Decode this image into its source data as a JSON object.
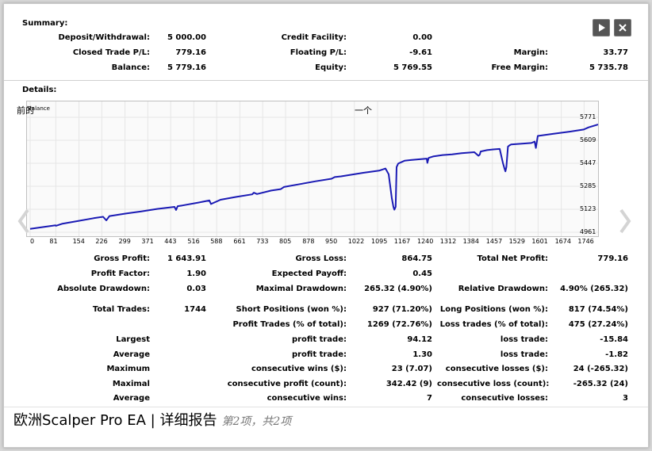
{
  "summary": {
    "title": "Summary:",
    "deposit_label": "Deposit/Withdrawal:",
    "deposit_value": "5 000.00",
    "credit_label": "Credit Facility:",
    "credit_value": "0.00",
    "closed_pl_label": "Closed Trade P/L:",
    "closed_pl_value": "779.16",
    "floating_pl_label": "Floating P/L:",
    "floating_pl_value": "-9.61",
    "margin_label": "Margin:",
    "margin_value": "33.77",
    "balance_label": "Balance:",
    "balance_value": "5 779.16",
    "equity_label": "Equity:",
    "equity_value": "5 769.55",
    "free_margin_label": "Free Margin:",
    "free_margin_value": "5 735.78"
  },
  "details": {
    "title": "Details:"
  },
  "chart_data": {
    "type": "line",
    "series": [
      {
        "name": "Balance"
      }
    ],
    "corner_labels": [
      "前的",
      "Balance"
    ],
    "top_marker": "一个",
    "x_ticks": [
      "0",
      "81",
      "154",
      "226",
      "299",
      "371",
      "443",
      "516",
      "588",
      "661",
      "733",
      "805",
      "878",
      "950",
      "1022",
      "1095",
      "1167",
      "1240",
      "1312",
      "1384",
      "1457",
      "1529",
      "1601",
      "1674",
      "1746"
    ],
    "y_ticks": [
      "5771",
      "5609",
      "5447",
      "5285",
      "5123",
      "4961"
    ],
    "ylim": [
      4961,
      5771
    ],
    "xlim": [
      0,
      1790
    ],
    "x": [
      0,
      80,
      81,
      100,
      150,
      200,
      230,
      240,
      245,
      250,
      300,
      350,
      400,
      455,
      460,
      465,
      480,
      530,
      565,
      570,
      600,
      650,
      700,
      705,
      715,
      760,
      790,
      800,
      850,
      900,
      950,
      960,
      980,
      1050,
      1100,
      1120,
      1130,
      1140,
      1145,
      1148,
      1152,
      1155,
      1160,
      1180,
      1200,
      1250,
      1252,
      1256,
      1270,
      1300,
      1330,
      1360,
      1400,
      1413,
      1417,
      1420,
      1440,
      1460,
      1480,
      1490,
      1495,
      1498,
      1501,
      1506,
      1512,
      1516,
      1580,
      1590,
      1594,
      1600,
      1650,
      1700,
      1745,
      1760,
      1790
    ],
    "y": [
      4985,
      5010,
      5006,
      5020,
      5040,
      5060,
      5070,
      5045,
      5060,
      5075,
      5092,
      5108,
      5125,
      5140,
      5118,
      5145,
      5150,
      5170,
      5185,
      5160,
      5190,
      5210,
      5228,
      5240,
      5230,
      5255,
      5265,
      5280,
      5300,
      5320,
      5338,
      5350,
      5355,
      5380,
      5395,
      5410,
      5370,
      5200,
      5140,
      5120,
      5140,
      5420,
      5445,
      5465,
      5470,
      5480,
      5450,
      5485,
      5495,
      5505,
      5510,
      5518,
      5525,
      5500,
      5508,
      5530,
      5540,
      5545,
      5548,
      5450,
      5410,
      5390,
      5420,
      5565,
      5575,
      5580,
      5590,
      5600,
      5555,
      5640,
      5655,
      5670,
      5685,
      5700,
      5720
    ]
  },
  "stats": {
    "gross_profit_label": "Gross Profit:",
    "gross_profit_value": "1 643.91",
    "gross_loss_label": "Gross Loss:",
    "gross_loss_value": "864.75",
    "total_net_label": "Total Net Profit:",
    "total_net_value": "779.16",
    "profit_factor_label": "Profit Factor:",
    "profit_factor_value": "1.90",
    "expected_payoff_label": "Expected Payoff:",
    "expected_payoff_value": "0.45",
    "abs_dd_label": "Absolute Drawdown:",
    "abs_dd_value": "0.03",
    "max_dd_label": "Maximal Drawdown:",
    "max_dd_value": "265.32 (4.90%)",
    "rel_dd_label": "Relative Drawdown:",
    "rel_dd_value": "4.90% (265.32)",
    "total_trades_label": "Total Trades:",
    "total_trades_value": "1744",
    "short_label": "Short Positions (won %):",
    "short_value": "927 (71.20%)",
    "long_label": "Long Positions (won %):",
    "long_value": "817 (74.54%)",
    "profit_trades_label": "Profit Trades (% of total):",
    "profit_trades_value": "1269 (72.76%)",
    "loss_trades_label": "Loss trades (% of total):",
    "loss_trades_value": "475 (27.24%)",
    "largest_label": "Largest",
    "largest_profit_label": "profit trade:",
    "largest_profit_value": "94.12",
    "largest_loss_label": "loss trade:",
    "largest_loss_value": "-15.84",
    "average_label": "Average",
    "average_profit_label": "profit trade:",
    "average_profit_value": "1.30",
    "average_loss_label": "loss trade:",
    "average_loss_value": "-1.82",
    "maximum_label": "Maximum",
    "max_cons_wins_label": "consecutive wins ($):",
    "max_cons_wins_value": "23 (7.07)",
    "max_cons_losses_label": "consecutive losses ($):",
    "max_cons_losses_value": "24 (-265.32)",
    "maximal_label": "Maximal",
    "maximal_profit_label": "consecutive profit (count):",
    "maximal_profit_value": "342.42 (9)",
    "maximal_loss_label": "consecutive loss (count):",
    "maximal_loss_value": "-265.32 (24)",
    "avg2_label": "Average",
    "avg_cons_wins_label": "consecutive wins:",
    "avg_cons_wins_value": "7",
    "avg_cons_losses_label": "consecutive losses:",
    "avg_cons_losses_value": "3"
  },
  "caption": {
    "title": "欧洲Scalper Pro EA | 详细报告",
    "subtitle": "第2项，共2项"
  },
  "colors": {
    "line": "#1a1ab4",
    "chart_bg": "#fafafa"
  },
  "icons": {
    "play": "play-icon",
    "close": "close-icon",
    "prev": "chevron-left-icon",
    "next": "chevron-right-icon"
  }
}
